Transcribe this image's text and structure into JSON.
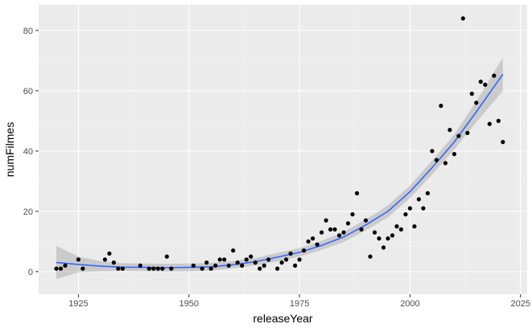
{
  "chart_data": {
    "type": "scatter",
    "xlabel": "releaseYear",
    "ylabel": "numFilmes",
    "xlim": [
      1916,
      2026.5
    ],
    "ylim": [
      -7.5,
      88.5
    ],
    "x_ticks": [
      1925,
      1950,
      1975,
      2000,
      2025
    ],
    "y_ticks": [
      0,
      20,
      40,
      60,
      80
    ],
    "x_minor": [
      1937.5,
      1962.5,
      1987.5,
      2012.5
    ],
    "y_minor": [
      10,
      30,
      50,
      70
    ],
    "grid": true,
    "points": [
      [
        1920,
        1
      ],
      [
        1921,
        1
      ],
      [
        1922,
        2
      ],
      [
        1925,
        4
      ],
      [
        1926,
        1
      ],
      [
        1931,
        4
      ],
      [
        1932,
        6
      ],
      [
        1933,
        3
      ],
      [
        1934,
        1
      ],
      [
        1935,
        1
      ],
      [
        1939,
        2
      ],
      [
        1941,
        1
      ],
      [
        1942,
        1
      ],
      [
        1943,
        1
      ],
      [
        1944,
        1
      ],
      [
        1945,
        5
      ],
      [
        1946,
        1
      ],
      [
        1951,
        2
      ],
      [
        1953,
        1
      ],
      [
        1954,
        3
      ],
      [
        1955,
        1
      ],
      [
        1956,
        2
      ],
      [
        1957,
        4
      ],
      [
        1958,
        4
      ],
      [
        1959,
        2
      ],
      [
        1960,
        7
      ],
      [
        1961,
        3
      ],
      [
        1962,
        2
      ],
      [
        1963,
        4
      ],
      [
        1964,
        5
      ],
      [
        1965,
        3
      ],
      [
        1966,
        1
      ],
      [
        1967,
        2
      ],
      [
        1968,
        4
      ],
      [
        1970,
        1
      ],
      [
        1971,
        3
      ],
      [
        1972,
        4
      ],
      [
        1973,
        6
      ],
      [
        1974,
        2
      ],
      [
        1975,
        4
      ],
      [
        1976,
        7
      ],
      [
        1977,
        10
      ],
      [
        1978,
        11
      ],
      [
        1979,
        9
      ],
      [
        1980,
        13
      ],
      [
        1981,
        17
      ],
      [
        1982,
        14
      ],
      [
        1983,
        14
      ],
      [
        1984,
        12
      ],
      [
        1985,
        13
      ],
      [
        1986,
        16
      ],
      [
        1987,
        19
      ],
      [
        1988,
        26
      ],
      [
        1989,
        14
      ],
      [
        1990,
        17
      ],
      [
        1991,
        5
      ],
      [
        1992,
        13
      ],
      [
        1993,
        11
      ],
      [
        1994,
        8
      ],
      [
        1995,
        11
      ],
      [
        1996,
        12
      ],
      [
        1997,
        15
      ],
      [
        1998,
        14
      ],
      [
        1999,
        19
      ],
      [
        2000,
        21
      ],
      [
        2001,
        15
      ],
      [
        2002,
        24
      ],
      [
        2003,
        21
      ],
      [
        2004,
        26
      ],
      [
        2005,
        40
      ],
      [
        2006,
        37
      ],
      [
        2007,
        55
      ],
      [
        2008,
        36
      ],
      [
        2009,
        47
      ],
      [
        2010,
        39
      ],
      [
        2011,
        45
      ],
      [
        2012,
        84
      ],
      [
        2013,
        46
      ],
      [
        2014,
        59
      ],
      [
        2015,
        56
      ],
      [
        2016,
        63
      ],
      [
        2017,
        62
      ],
      [
        2018,
        49
      ],
      [
        2019,
        65
      ],
      [
        2020,
        50
      ],
      [
        2021,
        43
      ]
    ],
    "smooth": {
      "x": [
        1920,
        1925,
        1930,
        1935,
        1940,
        1945,
        1950,
        1955,
        1960,
        1965,
        1970,
        1975,
        1980,
        1985,
        1990,
        1995,
        2000,
        2005,
        2010,
        2015,
        2021
      ],
      "y": [
        3,
        2.4,
        1.8,
        1.5,
        1.4,
        1.3,
        1.4,
        1.6,
        2.3,
        3.3,
        4.8,
        6.4,
        8.7,
        11.5,
        15.5,
        20,
        26.5,
        34.5,
        43,
        53,
        65.5
      ],
      "upper": [
        8.5,
        5,
        3.5,
        2.8,
        2.7,
        2.6,
        2.7,
        2.9,
        3.5,
        4.5,
        6.2,
        7.8,
        10.2,
        13.2,
        17.3,
        22,
        28.6,
        36.8,
        45.5,
        56.5,
        71
      ],
      "lower": [
        -2.5,
        -0.2,
        0.1,
        0.2,
        0.1,
        0,
        0.1,
        0.3,
        1.1,
        2.1,
        3.4,
        5,
        7.2,
        9.8,
        13.7,
        18,
        24.4,
        32.2,
        40.5,
        49.5,
        60
      ]
    },
    "colors": {
      "panel": "#ebebeb",
      "grid_major": "#ffffff",
      "point": "#000000",
      "line": "#3366ff",
      "ribbon": "#999999"
    }
  }
}
